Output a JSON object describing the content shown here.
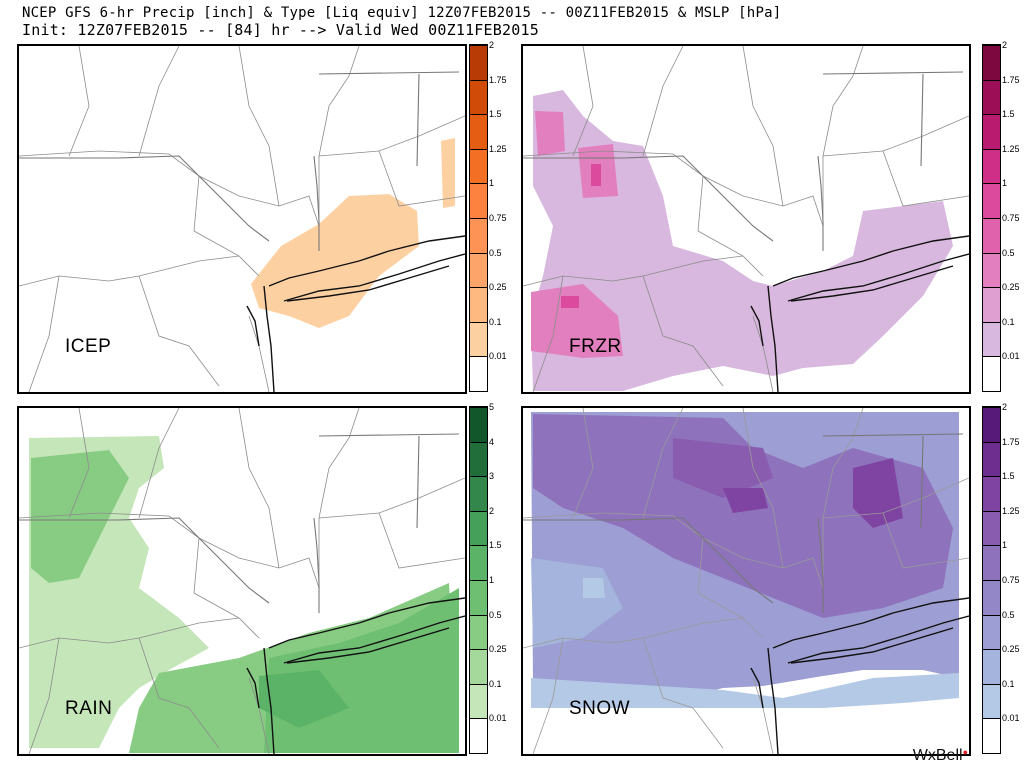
{
  "header": {
    "line1": "NCEP GFS 6-hr Precip [inch] & Type [Liq equiv] 12Z07FEB2015 -- 00Z11FEB2015 & MSLP [hPa]",
    "line2": "Init: 12Z07FEB2015 -- [84] hr --> Valid Wed 00Z11FEB2015"
  },
  "panels": [
    {
      "label": "ICEP",
      "scale": [
        "0.01",
        "0.1",
        "0.25",
        "0.5",
        "0.75",
        "1",
        "1.25",
        "1.5",
        "1.75",
        "2"
      ],
      "colors": [
        "#ffffff",
        "#fdd0a2",
        "#fdb980",
        "#fda46a",
        "#fd9355",
        "#fd8240",
        "#f36f24",
        "#e55d12",
        "#d04b08",
        "#b83a04"
      ]
    },
    {
      "label": "FRZR",
      "scale": [
        "0.01",
        "0.1",
        "0.25",
        "0.5",
        "0.75",
        "1",
        "1.25",
        "1.5",
        "1.75",
        "2"
      ],
      "colors": [
        "#ffffff",
        "#d8b8de",
        "#df9fd0",
        "#e27fbe",
        "#e062ac",
        "#db4a9c",
        "#cf2f86",
        "#b91c6f",
        "#9c0f57",
        "#7d0840"
      ]
    },
    {
      "label": "RAIN",
      "scale": [
        "0.01",
        "0.1",
        "0.25",
        "0.5",
        "1",
        "1.5",
        "2",
        "3",
        "4",
        "5"
      ],
      "colors": [
        "#ffffff",
        "#c4e6b8",
        "#a4d99b",
        "#88cc83",
        "#6fbf72",
        "#5ab366",
        "#45a05a",
        "#33874a",
        "#226e3a",
        "#12562b"
      ]
    },
    {
      "label": "SNOW",
      "scale": [
        "0.01",
        "0.1",
        "0.25",
        "0.5",
        "0.75",
        "1",
        "1.25",
        "1.5",
        "1.75",
        "2"
      ],
      "colors": [
        "#ffffff",
        "#b4c9e6",
        "#a4b4dc",
        "#9c9ed4",
        "#9487c8",
        "#8f72bc",
        "#8a5cb0",
        "#7f44a2",
        "#6e2e90",
        "#581a78"
      ]
    }
  ],
  "logo": {
    "text": "WxBell",
    "dot": "●"
  }
}
